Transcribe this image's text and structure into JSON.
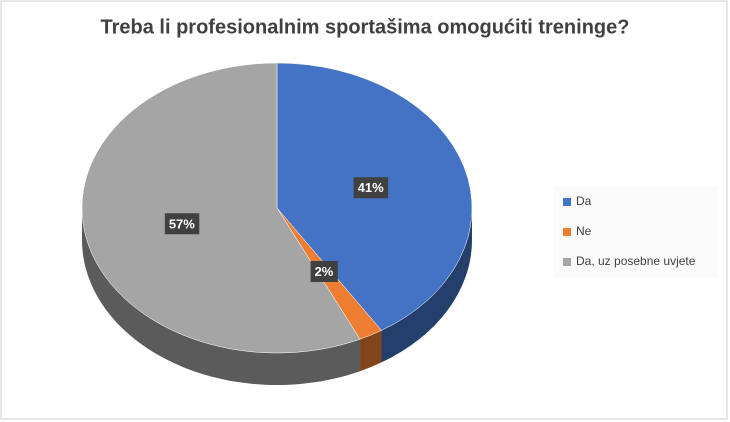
{
  "chart_data": {
    "type": "pie",
    "title": "Treba li profesionalnim sportašima omogućiti treninge?",
    "categories": [
      "Da",
      "Ne",
      "Da, uz posebne uvjete"
    ],
    "values": [
      41,
      2,
      57
    ],
    "value_labels": [
      "41%",
      "2%",
      "57%"
    ],
    "colors": [
      "#4472c4",
      "#ed7d31",
      "#a5a5a5"
    ],
    "legend": "right"
  }
}
